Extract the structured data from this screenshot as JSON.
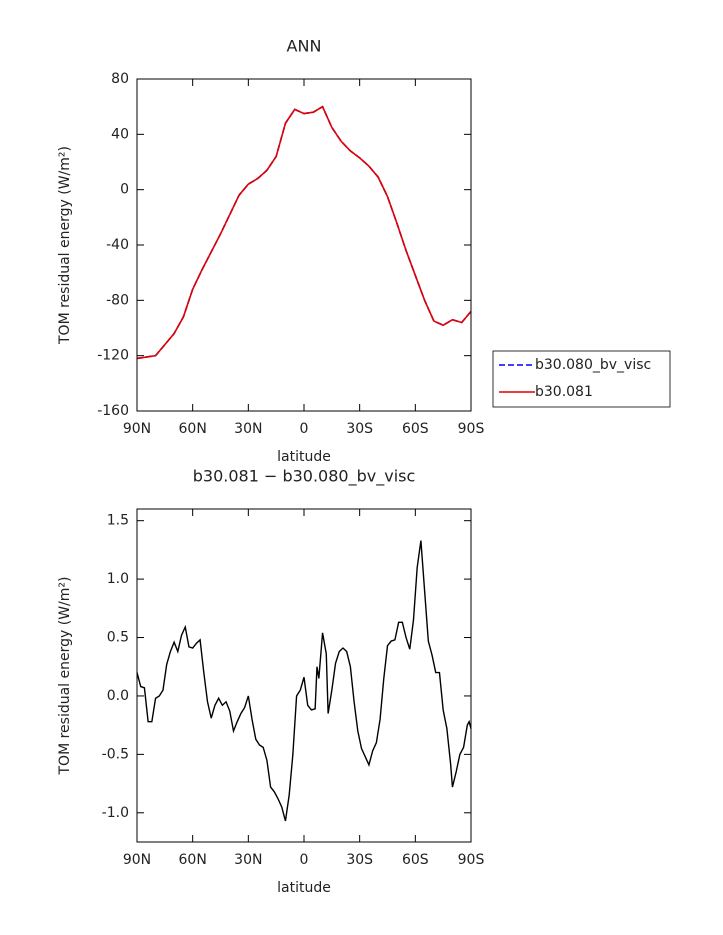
{
  "chart_data": [
    {
      "type": "line",
      "title": "ANN",
      "x_label": "latitude",
      "y_label": "TOM residual energy (W/m²)",
      "x": [
        90,
        85,
        80,
        75,
        70,
        65,
        60,
        55,
        50,
        45,
        40,
        35,
        30,
        25,
        20,
        15,
        10,
        5,
        0,
        -5,
        -10,
        -15,
        -20,
        -25,
        -30,
        -35,
        -40,
        -45,
        -50,
        -55,
        -60,
        -65,
        -70,
        -75,
        -80,
        -85,
        -90
      ],
      "xlim": [
        90,
        -90
      ],
      "xticks": [
        {
          "value": 90,
          "label": "90N"
        },
        {
          "value": 60,
          "label": "60N"
        },
        {
          "value": 30,
          "label": "30N"
        },
        0,
        {
          "value": -30,
          "label": "30S"
        },
        {
          "value": -60,
          "label": "60S"
        },
        {
          "value": -90,
          "label": "90S"
        }
      ],
      "ylim": [
        -160,
        80
      ],
      "yticks": [
        -160,
        -120,
        -80,
        -40,
        0,
        40,
        80
      ],
      "legend": "right",
      "series": [
        {
          "name": "b30.080_bv_visc",
          "color": "#0000ff",
          "line_style": "dashed",
          "values": [
            -122,
            -121,
            -120,
            -112,
            -104,
            -92,
            -72,
            -58,
            -45,
            -32,
            -18,
            -4,
            4,
            8,
            14,
            24,
            48,
            58,
            55,
            56,
            60,
            45,
            35,
            28,
            23,
            17,
            9,
            -5,
            -24,
            -44,
            -62,
            -80,
            -95,
            -98,
            -94,
            -96,
            -88
          ]
        },
        {
          "name": "b30.081",
          "color": "#e00000",
          "line_style": "solid",
          "values": [
            -122,
            -121,
            -120,
            -112,
            -104,
            -92,
            -72,
            -58,
            -45,
            -32,
            -18,
            -4,
            4,
            8,
            14,
            24,
            48,
            58,
            55,
            56,
            60,
            45,
            35,
            28,
            23,
            17,
            9,
            -5,
            -24,
            -44,
            -62,
            -80,
            -95,
            -98,
            -94,
            -96,
            -88
          ]
        }
      ]
    },
    {
      "type": "line",
      "title": "b30.081 − b30.080_bv_visc",
      "x_label": "latitude",
      "y_label": "TOM residual energy (W/m²)",
      "x": [
        90,
        88,
        86,
        84,
        82,
        80,
        78,
        76,
        74,
        72,
        70,
        68,
        66,
        64,
        62,
        60,
        58,
        56,
        54,
        52,
        50,
        48,
        46,
        44,
        42,
        40,
        38,
        36,
        34,
        32,
        30,
        28,
        26,
        24,
        22,
        20,
        18,
        16,
        14,
        12,
        10,
        8,
        6,
        4,
        2,
        0,
        -2,
        -4,
        -6,
        -7,
        -8,
        -10,
        -12,
        -13,
        -15,
        -17,
        -19,
        -21,
        -23,
        -25,
        -27,
        -29,
        -31,
        -33,
        -35,
        -37,
        -39,
        -41,
        -43,
        -45,
        -47,
        -49,
        -51,
        -53,
        -55,
        -57,
        -59,
        -61,
        -63,
        -65,
        -67,
        -69,
        -71,
        -73,
        -75,
        -77,
        -79,
        -80,
        -82,
        -84,
        -86,
        -88,
        -89,
        -90
      ],
      "values": [
        0.2,
        0.08,
        0.07,
        -0.22,
        -0.22,
        -0.02,
        0.0,
        0.05,
        0.27,
        0.38,
        0.46,
        0.38,
        0.52,
        0.59,
        0.42,
        0.41,
        0.45,
        0.48,
        0.2,
        -0.05,
        -0.19,
        -0.08,
        -0.02,
        -0.08,
        -0.05,
        -0.13,
        -0.3,
        -0.22,
        -0.15,
        -0.1,
        0.0,
        -0.2,
        -0.37,
        -0.42,
        -0.44,
        -0.55,
        -0.78,
        -0.82,
        -0.88,
        -0.95,
        -1.07,
        -0.85,
        -0.5,
        0.0,
        0.05,
        0.16,
        -0.08,
        -0.12,
        -0.11,
        0.25,
        0.15,
        0.54,
        0.36,
        -0.15,
        0.05,
        0.28,
        0.38,
        0.41,
        0.38,
        0.25,
        -0.05,
        -0.3,
        -0.45,
        -0.52,
        -0.59,
        -0.47,
        -0.4,
        -0.2,
        0.15,
        0.43,
        0.47,
        0.48,
        0.63,
        0.63,
        0.5,
        0.4,
        0.65,
        1.1,
        1.33,
        0.9,
        0.47,
        0.35,
        0.2,
        0.2,
        -0.12,
        -0.28,
        -0.58,
        -0.78,
        -0.65,
        -0.5,
        -0.44,
        -0.25,
        -0.22,
        -0.28
      ],
      "color": "#000000",
      "xlim": [
        90,
        -90
      ],
      "xticks": [
        {
          "value": 90,
          "label": "90N"
        },
        {
          "value": 60,
          "label": "60N"
        },
        {
          "value": 30,
          "label": "30N"
        },
        0,
        {
          "value": -30,
          "label": "30S"
        },
        {
          "value": -60,
          "label": "60S"
        },
        {
          "value": -90,
          "label": "90S"
        }
      ],
      "ylim": [
        -1.25,
        1.6
      ],
      "yticks": [
        {
          "value": -1.0,
          "label": "-1.0"
        },
        -0.5,
        {
          "value": 0.0,
          "label": "0.0"
        },
        0.5,
        {
          "value": 1.0,
          "label": "1.0"
        },
        1.5
      ]
    }
  ]
}
